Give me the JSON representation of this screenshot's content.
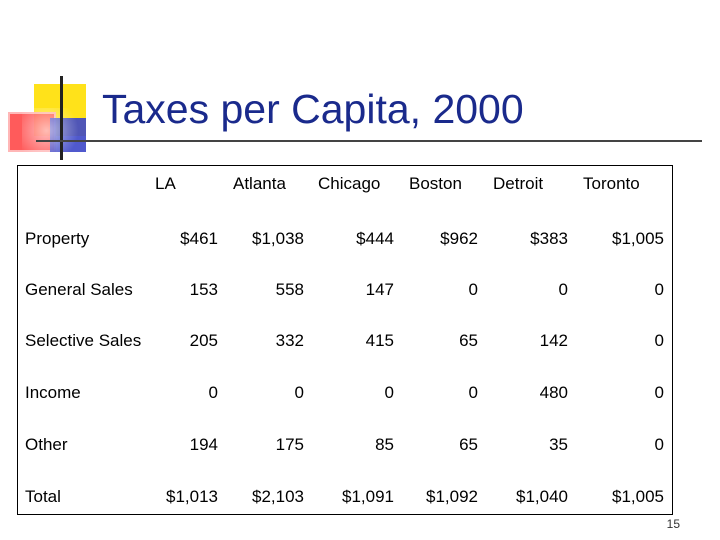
{
  "slide": {
    "title": "Taxes per Capita, 2000",
    "page_number": "15"
  },
  "table": {
    "columns": [
      "LA",
      "Atlanta",
      "Chicago",
      "Boston",
      "Detroit",
      "Toronto"
    ],
    "rows": [
      {
        "label": "Property",
        "values": [
          "$461",
          "$1,038",
          "$444",
          "$962",
          "$383",
          "$1,005"
        ]
      },
      {
        "label": "General Sales",
        "values": [
          "153",
          "558",
          "147",
          "0",
          "0",
          "0"
        ]
      },
      {
        "label": "Selective Sales",
        "values": [
          "205",
          "332",
          "415",
          "65",
          "142",
          "0"
        ]
      },
      {
        "label": "Income",
        "values": [
          "0",
          "0",
          "0",
          "0",
          "480",
          "0"
        ]
      },
      {
        "label": "Other",
        "values": [
          "194",
          "175",
          "85",
          "65",
          "35",
          "0"
        ]
      },
      {
        "label": "Total",
        "values": [
          "$1,013",
          "$2,103",
          "$1,091",
          "$1,092",
          "$1,040",
          "$1,005"
        ]
      }
    ]
  }
}
